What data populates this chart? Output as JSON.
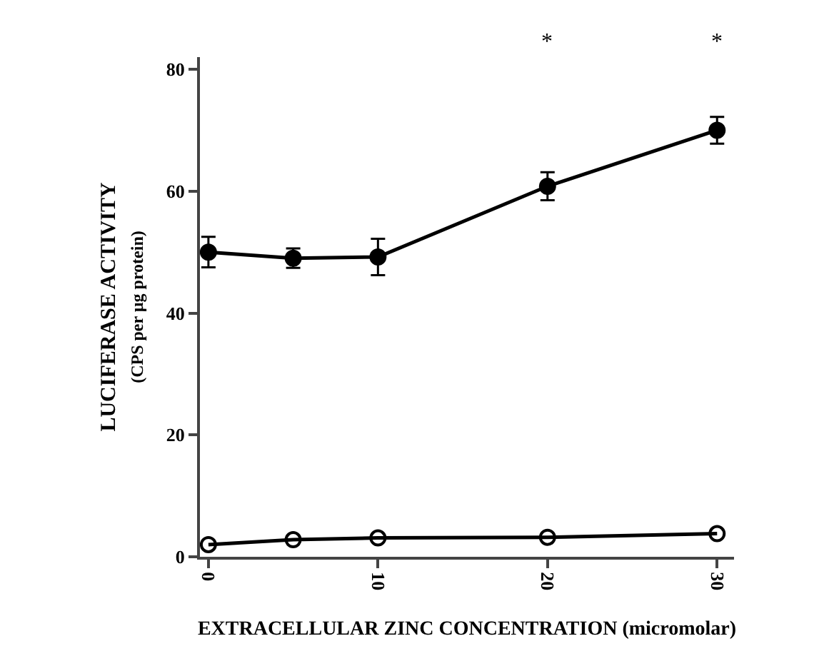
{
  "chart_data": {
    "type": "line",
    "xlabel": "EXTRACELLULAR ZINC CONCENTRATION (micromolar)",
    "ylabel": "LUCIFERASE ACTIVITY\n(CPS per µg protein)",
    "x": [
      0,
      5,
      10,
      20,
      30
    ],
    "series": [
      {
        "color": "#000000",
        "marker": "circle",
        "values": [
          50,
          49,
          49.2,
          60.8,
          70
        ],
        "errors": [
          2.5,
          1.6,
          3,
          2.3,
          2.2
        ]
      },
      {
        "color": "#000000",
        "marker": "circle-open",
        "values": [
          2,
          2.8,
          3.1,
          3.2,
          3.8
        ]
      }
    ],
    "xlim": [
      -0.5,
      31
    ],
    "xticks": [
      0,
      10,
      20,
      30
    ],
    "ylim": [
      0,
      82
    ],
    "yticks": [
      0,
      20,
      40,
      60,
      80
    ],
    "line_style": "solid",
    "annotations": [
      "*",
      "*"
    ]
  }
}
